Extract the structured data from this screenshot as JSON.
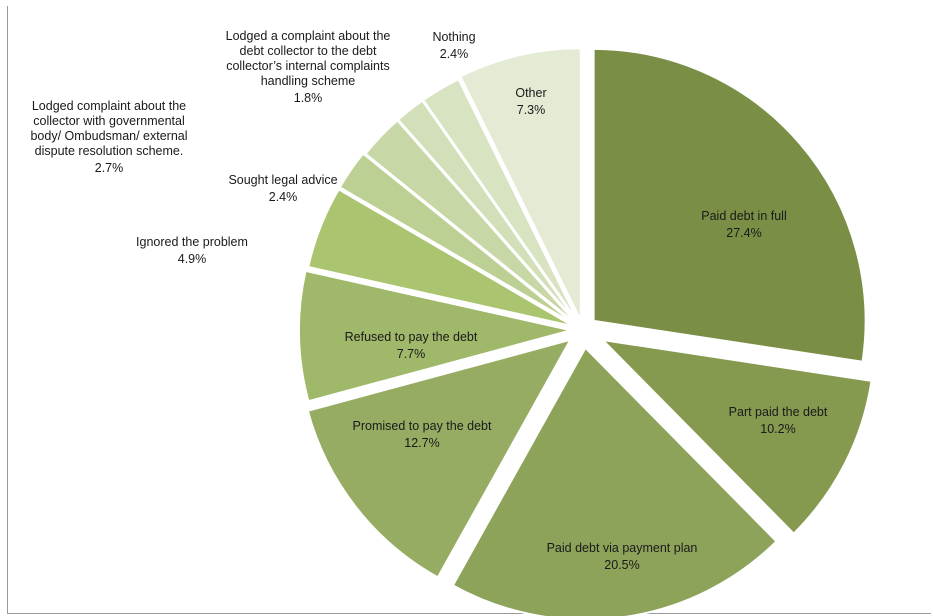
{
  "chart_data": {
    "type": "pie",
    "title": "",
    "slices": [
      {
        "label": "Paid debt in full",
        "value": 27.4,
        "value_label": "27.4%",
        "color": "#7a8f45"
      },
      {
        "label": "Part paid the debt",
        "value": 10.2,
        "value_label": "10.2%",
        "color": "#85994f"
      },
      {
        "label": "Paid debt via payment plan",
        "value": 20.5,
        "value_label": "20.5%",
        "color": "#8ea35a"
      },
      {
        "label": "Promised to pay the debt",
        "value": 12.7,
        "value_label": "12.7%",
        "color": "#97ac63"
      },
      {
        "label": "Refused to pay the debt",
        "value": 7.7,
        "value_label": "7.7%",
        "color": "#a0b86a"
      },
      {
        "label": "Ignored the problem",
        "value": 4.9,
        "value_label": "4.9%",
        "color": "#aac46f"
      },
      {
        "label": "Sought legal advice",
        "value": 2.4,
        "value_label": "2.4%",
        "color": "#bdd094"
      },
      {
        "label": "Lodged complaint about the collector with governmental body/ Ombudsman/ external dispute resolution scheme.",
        "value": 2.7,
        "value_label": "2.7%",
        "color": "#c7d8a6"
      },
      {
        "label": "Lodged a complaint about the debt collector to the debt collector's internal complaints handling scheme",
        "value": 1.8,
        "value_label": "1.8%",
        "color": "#d2dfb8"
      },
      {
        "label": "Nothing",
        "value": 2.4,
        "value_label": "2.4%",
        "color": "#d8e3c2"
      },
      {
        "label": "Other",
        "value": 7.3,
        "value_label": "7.3%",
        "color": "#e3ebd4"
      }
    ]
  }
}
